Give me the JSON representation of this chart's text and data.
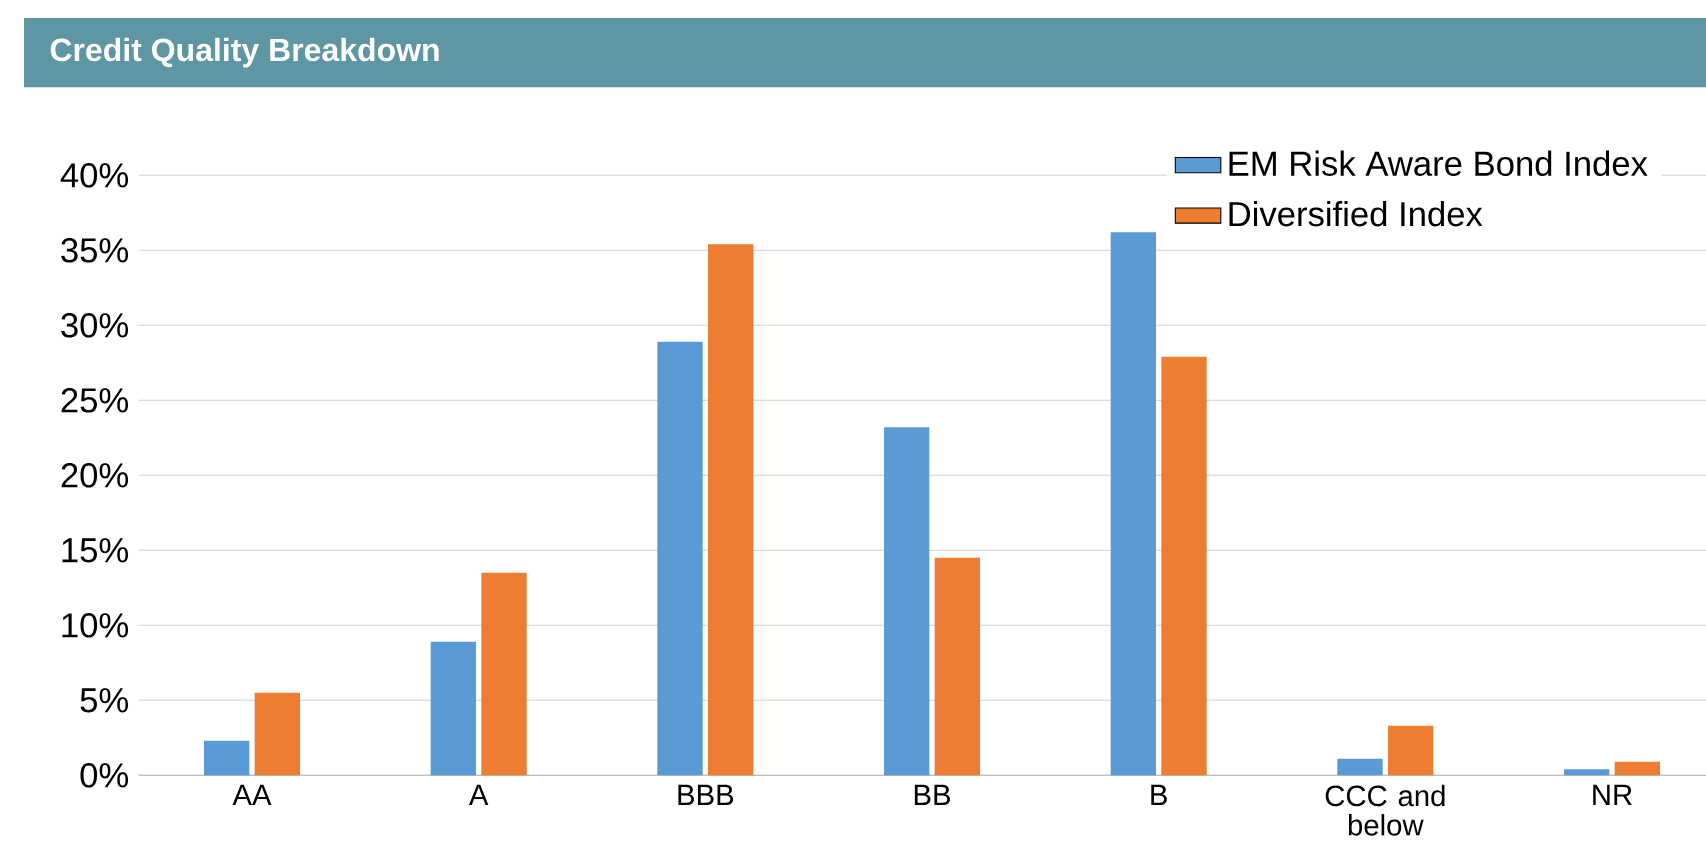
{
  "chart_data": {
    "type": "bar",
    "title": "Credit Quality Breakdown",
    "categories": [
      "AA",
      "A",
      "BBB",
      "BB",
      "B",
      "CCC and below",
      "NR"
    ],
    "series": [
      {
        "name": "EM Risk Aware Bond Index",
        "color": "#5b9bd5",
        "values": [
          2.3,
          8.9,
          28.9,
          23.2,
          36.2,
          1.1,
          0.4
        ]
      },
      {
        "name": "Diversified Index",
        "color": "#ed7d31",
        "values": [
          5.5,
          13.5,
          35.4,
          14.5,
          27.9,
          3.3,
          0.9
        ]
      }
    ],
    "ylim": [
      0,
      40
    ],
    "yticks": [
      {
        "value": 0,
        "label": "0%"
      },
      {
        "value": 5,
        "label": "5%"
      },
      {
        "value": 10,
        "label": "10%"
      },
      {
        "value": 15,
        "label": "15%"
      },
      {
        "value": 20,
        "label": "20%"
      },
      {
        "value": 25,
        "label": "25%"
      },
      {
        "value": 30,
        "label": "30%"
      },
      {
        "value": 35,
        "label": "35%"
      },
      {
        "value": 40,
        "label": "40%"
      }
    ],
    "grid": "y",
    "legend": "top right"
  }
}
